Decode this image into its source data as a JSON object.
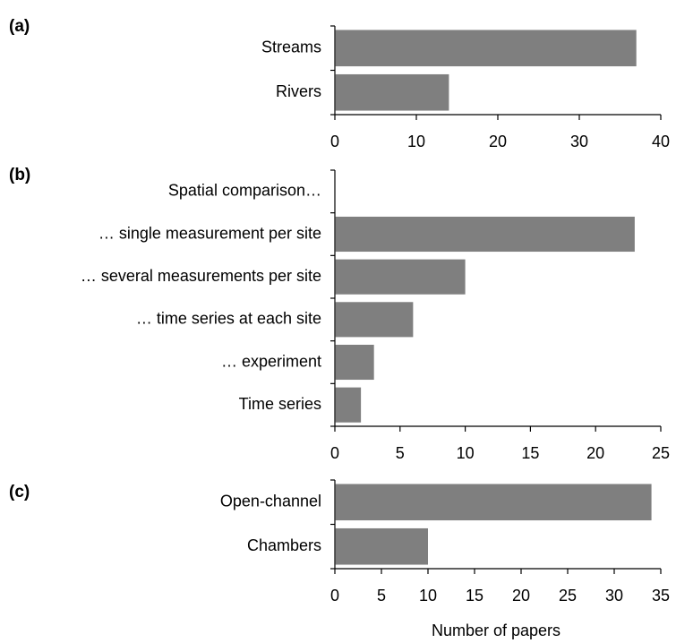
{
  "chart_data": [
    {
      "panel": "(a)",
      "type": "bar",
      "orientation": "horizontal",
      "categories": [
        "Streams",
        "Rivers"
      ],
      "values": [
        37,
        14
      ],
      "xlim": [
        0,
        40
      ],
      "xticks": [
        "0",
        "10",
        "20",
        "30",
        "40"
      ],
      "bar_color": "#7f7f7f",
      "grid": false
    },
    {
      "panel": "(b)",
      "type": "bar",
      "orientation": "horizontal",
      "categories": [
        "Spatial comparison…",
        "… single measurement per site",
        "… several measurements per site",
        "… time series at each site",
        "… experiment",
        "Time series"
      ],
      "values": [
        null,
        23,
        10,
        6,
        3,
        2
      ],
      "xlim": [
        0,
        25
      ],
      "xticks": [
        "0",
        "5",
        "10",
        "15",
        "20",
        "25"
      ],
      "bar_color": "#7f7f7f",
      "grid": false
    },
    {
      "panel": "(c)",
      "type": "bar",
      "orientation": "horizontal",
      "categories": [
        "Open-channel",
        "Chambers"
      ],
      "values": [
        34,
        10
      ],
      "xlim": [
        0,
        35
      ],
      "xticks": [
        "0",
        "5",
        "10",
        "15",
        "20",
        "25",
        "30",
        "35"
      ],
      "xlabel": "Number of papers",
      "bar_color": "#7f7f7f",
      "grid": false
    }
  ]
}
